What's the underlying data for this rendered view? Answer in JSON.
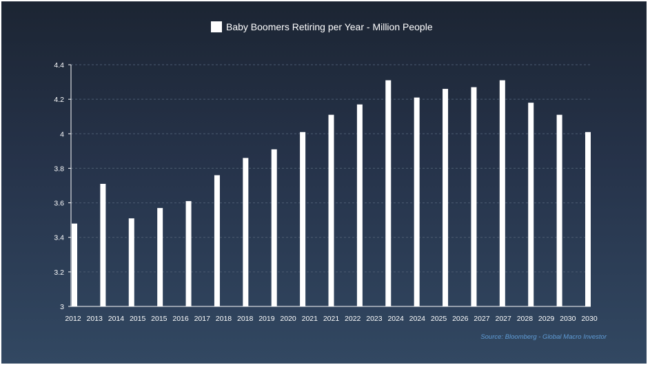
{
  "chart_data": {
    "type": "bar",
    "title": "Baby Boomers Retiring per Year - Million People",
    "xlabel": "",
    "ylabel": "",
    "ylim": [
      3,
      4.4
    ],
    "yticks": [
      "3",
      "3.2",
      "3.4",
      "3.6",
      "3.8",
      "4",
      "4.2",
      "4.4"
    ],
    "x_tick_labels": [
      "2012",
      "2013",
      "2014",
      "2015",
      "2015",
      "2016",
      "2017",
      "2018",
      "2018",
      "2019",
      "2020",
      "2021",
      "2021",
      "2022",
      "2023",
      "2024",
      "2024",
      "2025",
      "2026",
      "2027",
      "2027",
      "2028",
      "2029",
      "2030",
      "2030"
    ],
    "series": [
      {
        "name": "Baby Boomers Retiring per Year - Million People",
        "values": [
          3.48,
          3.71,
          3.51,
          3.57,
          3.61,
          3.76,
          3.86,
          3.91,
          4.01,
          4.11,
          4.17,
          4.31,
          4.21,
          4.26,
          4.27,
          4.31,
          4.18,
          4.11,
          4.01
        ]
      }
    ],
    "grid": "horizontal-dashed",
    "legend": "top-center",
    "source": "Source: Bloomberg - Global Macro Investor",
    "colors": {
      "bar": "#ffffff",
      "grid": "#4c5c72",
      "source_text": "#5f9cd6",
      "background_top": "#1c2533",
      "background_bottom": "#324862"
    }
  }
}
